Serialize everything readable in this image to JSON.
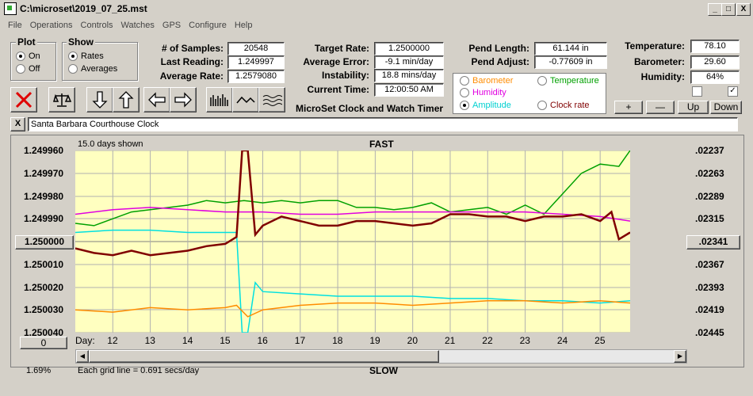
{
  "window": {
    "title": "C:\\microset\\2019_07_25.mst",
    "min": "_",
    "max": "□",
    "close": "X"
  },
  "menu": [
    "File",
    "Operations",
    "Controls",
    "Watches",
    "GPS",
    "Configure",
    "Help"
  ],
  "plot_group": {
    "title": "Plot",
    "on": "On",
    "off": "Off",
    "selected": "On"
  },
  "show_group": {
    "title": "Show",
    "rates": "Rates",
    "averages": "Averages",
    "selected": "Rates"
  },
  "stats_left": {
    "samples_label": "# of Samples:",
    "samples": "20548",
    "last_label": "Last Reading:",
    "last": "1.249997",
    "avg_label": "Average Rate:",
    "avg": "1.2579080"
  },
  "stats_mid": {
    "target_label": "Target Rate:",
    "target": "1.2500000",
    "avgerr_label": "Average Error:",
    "avgerr": "-9.1 min/day",
    "instab_label": "Instability:",
    "instab": "18.8 mins/day",
    "time_label": "Current Time:",
    "time": "12:00:50 AM",
    "caption": "MicroSet Clock and Watch Timer"
  },
  "stats_pend": {
    "length_label": "Pend Length:",
    "length": "61.144 in",
    "adjust_label": "Pend Adjust:",
    "adjust": "-0.77609 in"
  },
  "stats_env": {
    "temp_label": "Temperature:",
    "temp": "78.10",
    "baro_label": "Barometer:",
    "baro": "29.60",
    "hum_label": "Humidity:",
    "hum": "64%"
  },
  "legend": {
    "barometer": "Barometer",
    "temperature": "Temperature",
    "humidity": "Humidity",
    "amplitude": "Amplitude",
    "clock_rate": "Clock rate",
    "selected": "Amplitude"
  },
  "colors": {
    "barometer": "#ff8c00",
    "temperature": "#00a000",
    "humidity": "#e000e0",
    "amplitude": "#00e0e0",
    "clock_rate": "#800000",
    "plot_bg": "#ffffc0"
  },
  "env_buttons": {
    "plus": "+",
    "minus": "—",
    "up": "Up",
    "down": "Down"
  },
  "clock_name": "Santa Barbara Courthouse Clock",
  "clear_btn": "X",
  "chart": {
    "days_shown": "15.0 days shown",
    "top_label": "FAST",
    "bottom_label": "SLOW",
    "grid_caption": "Each grid line = 0.691 secs/day",
    "percent": "1.69%",
    "zero_btn": "0",
    "center_btn": "1.250000",
    "center_right_btn": ".02341",
    "day_label": "Day:"
  },
  "chart_data": {
    "type": "line",
    "x_ticks": [
      "12",
      "13",
      "14",
      "15",
      "16",
      "17",
      "18",
      "19",
      "20",
      "21",
      "22",
      "23",
      "24",
      "25"
    ],
    "x_range": [
      11,
      25.8
    ],
    "y_left_ticks": [
      "1.249960",
      "1.249970",
      "1.249980",
      "1.249990",
      "1.250000",
      "1.250010",
      "1.250020",
      "1.250030",
      "1.250040"
    ],
    "y_right_ticks": [
      ".02237",
      ".02263",
      ".02289",
      ".02315",
      ".02341",
      ".02367",
      ".02393",
      ".02419",
      ".02445"
    ],
    "y_range": [
      1.24996,
      1.25004
    ],
    "grid": true,
    "series": [
      {
        "color_key": "temperature",
        "x": [
          11,
          11.5,
          12,
          12.5,
          13,
          13.5,
          14,
          14.5,
          15,
          15.5,
          16,
          16.5,
          17,
          17.5,
          18,
          18.5,
          19,
          19.5,
          20,
          20.5,
          21,
          21.5,
          22,
          22.5,
          23,
          23.5,
          24,
          24.5,
          25,
          25.5,
          25.8
        ],
        "y": [
          1.249992,
          1.249993,
          1.24999,
          1.249987,
          1.249986,
          1.249985,
          1.249984,
          1.249982,
          1.249983,
          1.249982,
          1.249983,
          1.249982,
          1.249983,
          1.249982,
          1.249982,
          1.249985,
          1.249985,
          1.249986,
          1.249985,
          1.249983,
          1.249987,
          1.249986,
          1.249985,
          1.249988,
          1.249984,
          1.249988,
          1.249979,
          1.24997,
          1.249966,
          1.249967,
          1.24996
        ]
      },
      {
        "color_key": "humidity",
        "x": [
          11,
          12,
          13,
          14,
          15,
          16,
          17,
          18,
          19,
          20,
          21,
          22,
          23,
          24,
          25,
          25.8
        ],
        "y": [
          1.249988,
          1.249986,
          1.249985,
          1.249986,
          1.249987,
          1.249987,
          1.249988,
          1.249988,
          1.249987,
          1.249987,
          1.249987,
          1.249987,
          1.249987,
          1.249988,
          1.249989,
          1.249991
        ]
      },
      {
        "color_key": "amplitude",
        "x": [
          11,
          12,
          13,
          14,
          15,
          15.3,
          15.45,
          15.6,
          15.8,
          16,
          17,
          18,
          19,
          20,
          21,
          22,
          23,
          24,
          25,
          25.8
        ],
        "y": [
          1.249996,
          1.249995,
          1.249995,
          1.249996,
          1.249996,
          1.249996,
          1.25004,
          1.25004,
          1.250018,
          1.250022,
          1.250023,
          1.250024,
          1.250024,
          1.250024,
          1.250025,
          1.250025,
          1.250026,
          1.250026,
          1.250027,
          1.250026
        ]
      },
      {
        "color_key": "barometer",
        "x": [
          11,
          12,
          13,
          14,
          15,
          15.3,
          15.6,
          16,
          17,
          18,
          19,
          20,
          21,
          22,
          23,
          24,
          25,
          25.8
        ],
        "y": [
          1.25003,
          1.250031,
          1.250029,
          1.25003,
          1.250029,
          1.250028,
          1.250033,
          1.25003,
          1.250028,
          1.250027,
          1.250027,
          1.250028,
          1.250027,
          1.250026,
          1.250026,
          1.250027,
          1.250026,
          1.250027
        ]
      },
      {
        "color_key": "clock_rate",
        "x": [
          11,
          11.5,
          12,
          12.5,
          13,
          13.5,
          14,
          14.5,
          15,
          15.3,
          15.45,
          15.6,
          15.8,
          16,
          16.5,
          17,
          17.5,
          18,
          18.5,
          19,
          19.5,
          20,
          20.5,
          21,
          21.5,
          22,
          22.5,
          23,
          23.5,
          24,
          24.5,
          25,
          25.3,
          25.5,
          25.8
        ],
        "y": [
          1.250003,
          1.250005,
          1.250006,
          1.250004,
          1.250006,
          1.250005,
          1.250004,
          1.250002,
          1.250001,
          1.249998,
          1.24996,
          1.24996,
          1.249997,
          1.249993,
          1.249989,
          1.249991,
          1.249993,
          1.249993,
          1.249991,
          1.249991,
          1.249992,
          1.249993,
          1.249992,
          1.249988,
          1.249988,
          1.249989,
          1.249989,
          1.249991,
          1.249989,
          1.249989,
          1.249988,
          1.249991,
          1.249987,
          1.249999,
          1.249996
        ]
      }
    ]
  }
}
